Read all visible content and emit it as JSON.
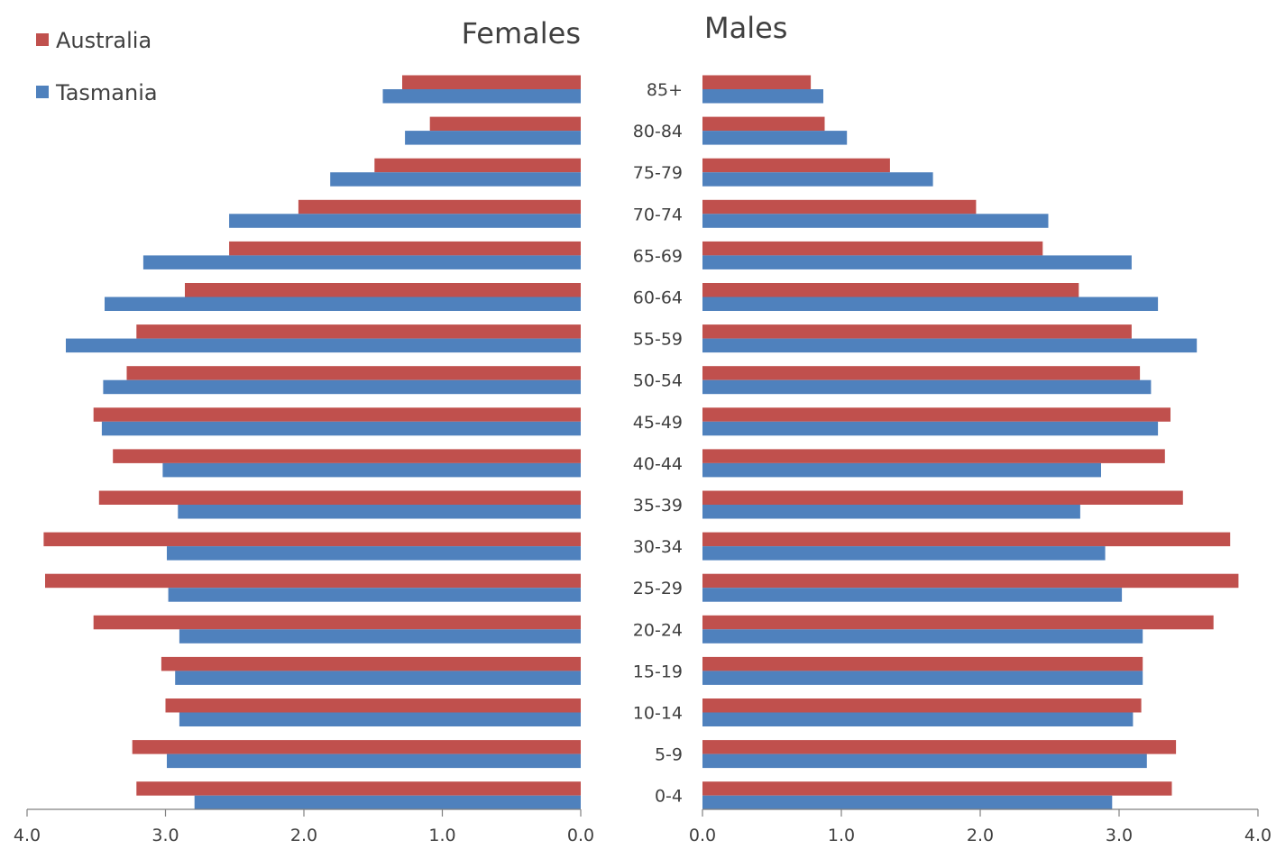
{
  "chart_data": {
    "type": "bar",
    "orientation": "horizontal",
    "layout": "population-pyramid",
    "categories": [
      "0-4",
      "5-9",
      "10-14",
      "15-19",
      "20-24",
      "25-29",
      "30-34",
      "35-39",
      "40-44",
      "45-49",
      "50-54",
      "55-59",
      "60-64",
      "65-69",
      "70-74",
      "75-79",
      "80-84",
      "85+"
    ],
    "panels": [
      {
        "title": "Females",
        "direction": "left",
        "series": [
          {
            "name": "Australia",
            "values": [
              3.21,
              3.24,
              3.0,
              3.03,
              3.52,
              3.87,
              3.88,
              3.48,
              3.38,
              3.52,
              3.28,
              3.21,
              2.86,
              2.54,
              2.04,
              1.49,
              1.09,
              1.29
            ]
          },
          {
            "name": "Tasmania",
            "values": [
              2.79,
              2.99,
              2.9,
              2.93,
              2.9,
              2.98,
              2.99,
              2.91,
              3.02,
              3.46,
              3.45,
              3.72,
              3.44,
              3.16,
              2.54,
              1.81,
              1.27,
              1.43
            ]
          }
        ]
      },
      {
        "title": "Males",
        "direction": "right",
        "series": [
          {
            "name": "Australia",
            "values": [
              3.38,
              3.41,
              3.16,
              3.17,
              3.68,
              3.86,
              3.8,
              3.46,
              3.33,
              3.37,
              3.15,
              3.09,
              2.71,
              2.45,
              1.97,
              1.35,
              0.88,
              0.78
            ]
          },
          {
            "name": "Tasmania",
            "values": [
              2.95,
              3.2,
              3.1,
              3.17,
              3.17,
              3.02,
              2.9,
              2.72,
              2.87,
              3.28,
              3.23,
              3.56,
              3.28,
              3.09,
              2.49,
              1.66,
              1.04,
              0.87
            ]
          }
        ]
      }
    ],
    "xlim": [
      0,
      4
    ],
    "xticks": [
      "4.0",
      "3.0",
      "2.0",
      "1.0",
      "0.0",
      "0.0",
      "1.0",
      "2.0",
      "3.0",
      "4.0"
    ],
    "legend": {
      "position": "top-left",
      "entries": [
        "Australia",
        "Tasmania"
      ]
    },
    "colors": {
      "Australia": "#c0504d",
      "Tasmania": "#4f81bd",
      "axis": "#808080",
      "text": "#404040"
    },
    "grid": false
  }
}
